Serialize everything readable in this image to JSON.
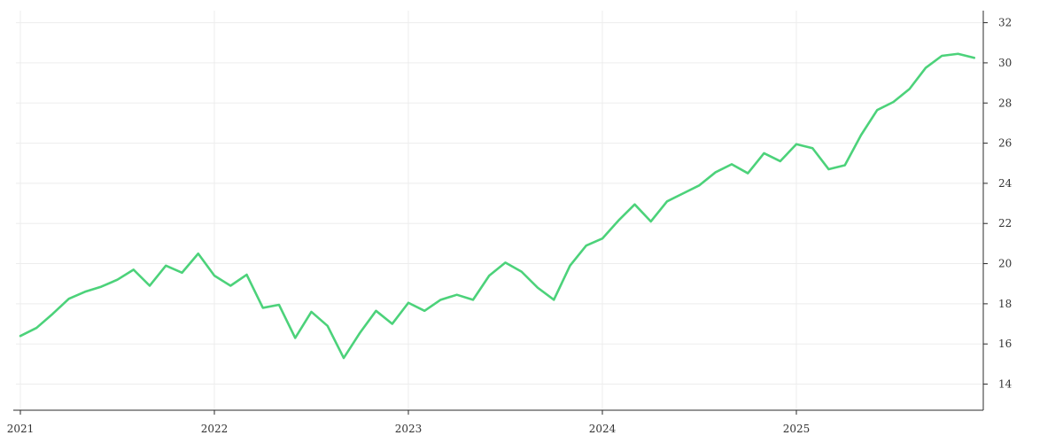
{
  "chart_data": {
    "type": "line",
    "title": "",
    "xlabel": "",
    "ylabel": "",
    "x_ticks": [
      "2021",
      "2022",
      "2023",
      "2024",
      "2025"
    ],
    "y_ticks": [
      14,
      16,
      18,
      20,
      22,
      24,
      26,
      28,
      30,
      32
    ],
    "ylim": [
      12.7,
      32.6
    ],
    "xlim": [
      "2021-01",
      "2025-12"
    ],
    "grid": true,
    "legend": "none",
    "y_axis_side": "right",
    "series": [
      {
        "color": "#4cd27a",
        "points": [
          [
            "2021-01",
            16.4
          ],
          [
            "2021-02",
            16.8
          ],
          [
            "2021-03",
            17.5
          ],
          [
            "2021-04",
            18.25
          ],
          [
            "2021-05",
            18.6
          ],
          [
            "2021-06",
            18.85
          ],
          [
            "2021-07",
            19.2
          ],
          [
            "2021-08",
            19.7
          ],
          [
            "2021-09",
            18.9
          ],
          [
            "2021-10",
            19.9
          ],
          [
            "2021-11",
            19.55
          ],
          [
            "2021-12",
            20.5
          ],
          [
            "2022-01",
            19.4
          ],
          [
            "2022-02",
            18.9
          ],
          [
            "2022-03",
            19.45
          ],
          [
            "2022-04",
            17.8
          ],
          [
            "2022-05",
            17.95
          ],
          [
            "2022-06",
            16.3
          ],
          [
            "2022-07",
            17.6
          ],
          [
            "2022-08",
            16.9
          ],
          [
            "2022-09",
            15.3
          ],
          [
            "2022-10",
            16.55
          ],
          [
            "2022-11",
            17.65
          ],
          [
            "2022-12",
            17.0
          ],
          [
            "2023-01",
            18.05
          ],
          [
            "2023-02",
            17.65
          ],
          [
            "2023-03",
            18.2
          ],
          [
            "2023-04",
            18.45
          ],
          [
            "2023-05",
            18.2
          ],
          [
            "2023-06",
            19.4
          ],
          [
            "2023-07",
            20.05
          ],
          [
            "2023-08",
            19.6
          ],
          [
            "2023-09",
            18.8
          ],
          [
            "2023-10",
            18.2
          ],
          [
            "2023-11",
            19.9
          ],
          [
            "2023-12",
            20.9
          ],
          [
            "2024-01",
            21.25
          ],
          [
            "2024-02",
            22.15
          ],
          [
            "2024-03",
            22.95
          ],
          [
            "2024-04",
            22.1
          ],
          [
            "2024-05",
            23.1
          ],
          [
            "2024-06",
            23.5
          ],
          [
            "2024-07",
            23.9
          ],
          [
            "2024-08",
            24.55
          ],
          [
            "2024-09",
            24.95
          ],
          [
            "2024-10",
            24.5
          ],
          [
            "2024-11",
            25.5
          ],
          [
            "2024-12",
            25.1
          ],
          [
            "2025-01",
            25.95
          ],
          [
            "2025-02",
            25.75
          ],
          [
            "2025-03",
            24.7
          ],
          [
            "2025-04",
            24.9
          ],
          [
            "2025-05",
            26.4
          ],
          [
            "2025-06",
            27.65
          ],
          [
            "2025-07",
            28.05
          ],
          [
            "2025-08",
            28.7
          ],
          [
            "2025-09",
            29.75
          ],
          [
            "2025-10",
            30.35
          ],
          [
            "2025-11",
            30.45
          ],
          [
            "2025-12",
            30.25
          ]
        ]
      }
    ]
  }
}
